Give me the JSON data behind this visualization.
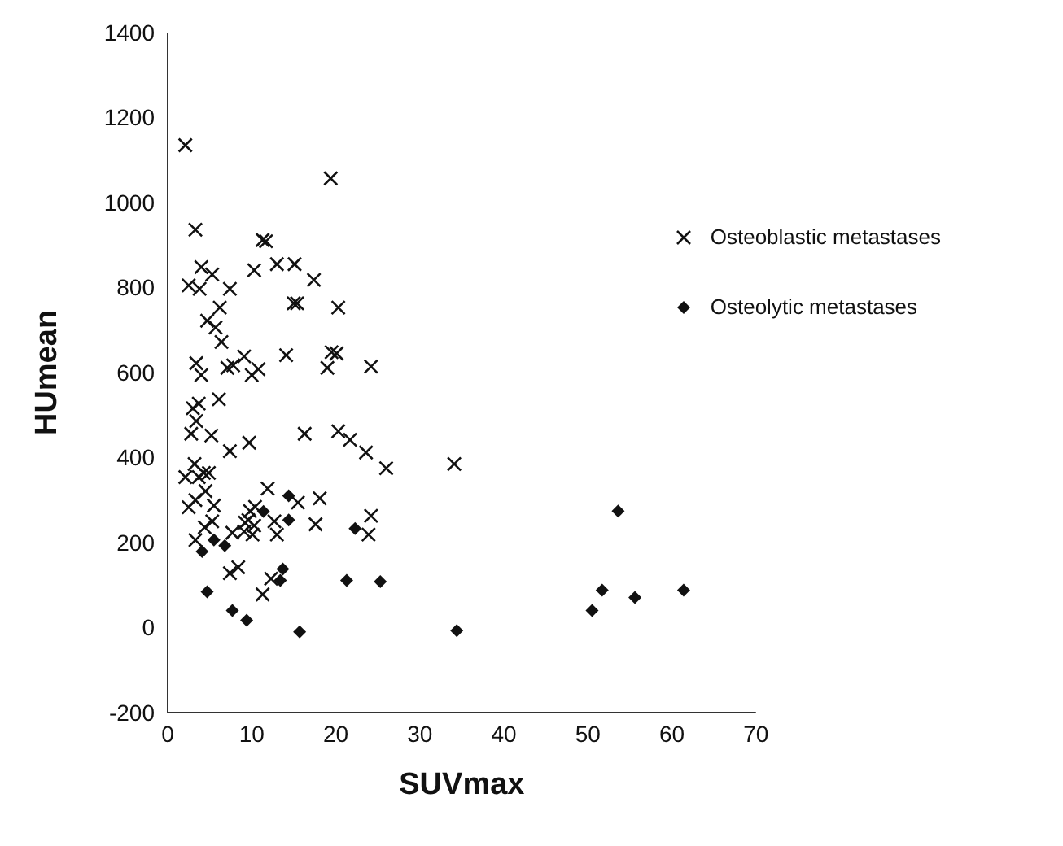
{
  "chart_data": {
    "type": "scatter",
    "xlabel": "SUVmax",
    "ylabel": "HUmean",
    "xlim": [
      0,
      70
    ],
    "xticks": [
      0,
      10,
      20,
      30,
      40,
      50,
      60,
      70
    ],
    "ylim": [
      -200,
      1400
    ],
    "yticks": [
      -200,
      0,
      200,
      400,
      600,
      800,
      1000,
      1200,
      1400
    ],
    "grid": false,
    "legend": "top right",
    "series": [
      {
        "name": "Osteoblastic metastases",
        "color": "#111111",
        "marker": "cross",
        "x": [
          2.1,
          19.4,
          3.3,
          11.3,
          11.7,
          4.0,
          5.3,
          10.3,
          13.0,
          15.1,
          17.4,
          2.5,
          3.8,
          7.4,
          6.2,
          15.0,
          15.4,
          20.3,
          4.7,
          5.7,
          6.4,
          3.4,
          4.0,
          7.1,
          7.8,
          9.1,
          10.0,
          10.8,
          14.1,
          19.0,
          19.5,
          20.1,
          3.0,
          3.7,
          6.1,
          3.4,
          2.8,
          5.2,
          7.4,
          9.7,
          16.3,
          20.3,
          21.7,
          23.6,
          26.0,
          34.1,
          24.2,
          24.2,
          23.9,
          3.2,
          2.1,
          3.7,
          4.3,
          4.9,
          4.5,
          2.5,
          3.3,
          5.5,
          4.4,
          5.3,
          3.3,
          7.7,
          9.1,
          10.1,
          9.6,
          9.8,
          10.4,
          10.3,
          9.2,
          11.9,
          12.7,
          13.0,
          15.5,
          18.1,
          17.6,
          7.4,
          8.4,
          12.3,
          11.3
        ],
        "values": [
          1135,
          1057,
          936,
          912,
          909,
          848,
          831,
          841,
          855,
          855,
          818,
          805,
          797,
          797,
          753,
          763,
          763,
          753,
          722,
          706,
          672,
          622,
          594,
          611,
          617,
          638,
          594,
          608,
          641,
          611,
          648,
          645,
          516,
          527,
          537,
          486,
          456,
          452,
          415,
          435,
          456,
          462,
          442,
          412,
          375,
          385,
          614,
          263,
          219,
          385,
          354,
          354,
          364,
          364,
          321,
          283,
          300,
          287,
          236,
          250,
          206,
          223,
          226,
          219,
          253,
          274,
          284,
          240,
          247,
          327,
          250,
          219,
          294,
          304,
          243,
          128,
          142,
          115,
          78
        ]
      },
      {
        "name": "Osteolytic metastases",
        "color": "#111111",
        "marker": "diamond",
        "x": [
          14.4,
          11.4,
          14.4,
          22.3,
          5.5,
          6.8,
          4.1,
          13.7,
          13.4,
          21.3,
          4.7,
          7.7,
          9.4,
          15.7,
          25.3,
          34.4,
          50.5,
          51.7,
          53.6,
          55.6,
          61.4
        ],
        "values": [
          310,
          273,
          253,
          233,
          206,
          193,
          179,
          138,
          111,
          111,
          84,
          40,
          17,
          -10,
          108,
          -7,
          40,
          88,
          274,
          71,
          88
        ]
      }
    ]
  }
}
